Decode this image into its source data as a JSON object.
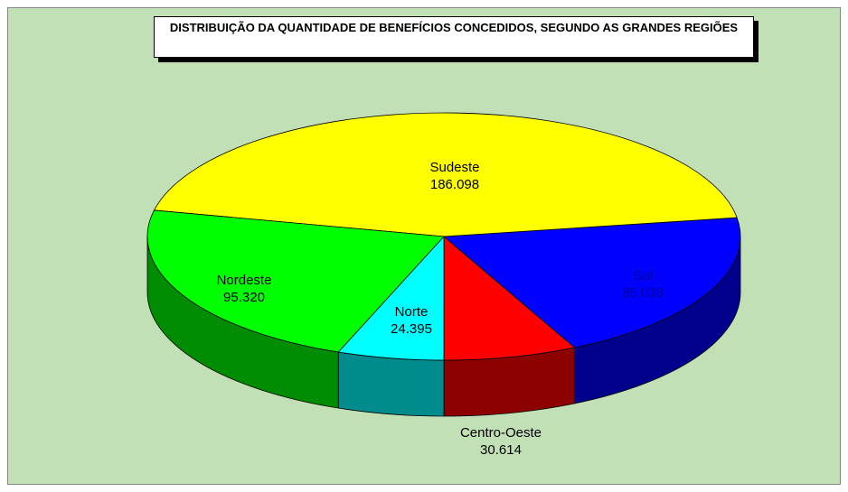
{
  "chart_data": {
    "type": "pie3d",
    "title": "DISTRIBUIÇÃO DA QUANTIDADE DE BENEFÍCIOS CONCEDIDOS, SEGUNDO AS GRANDES REGIÕES",
    "categories": [
      "Centro-Oeste",
      "Sul",
      "Sudeste",
      "Nordeste",
      "Norte"
    ],
    "values": [
      30614,
      85038,
      186098,
      95320,
      24395
    ],
    "value_labels": [
      "30.614",
      "85.038",
      "186.098",
      "95.320",
      "24.395"
    ],
    "colors": [
      "#ff0000",
      "#0000ff",
      "#ffff00",
      "#00ff00",
      "#00ffff"
    ]
  }
}
